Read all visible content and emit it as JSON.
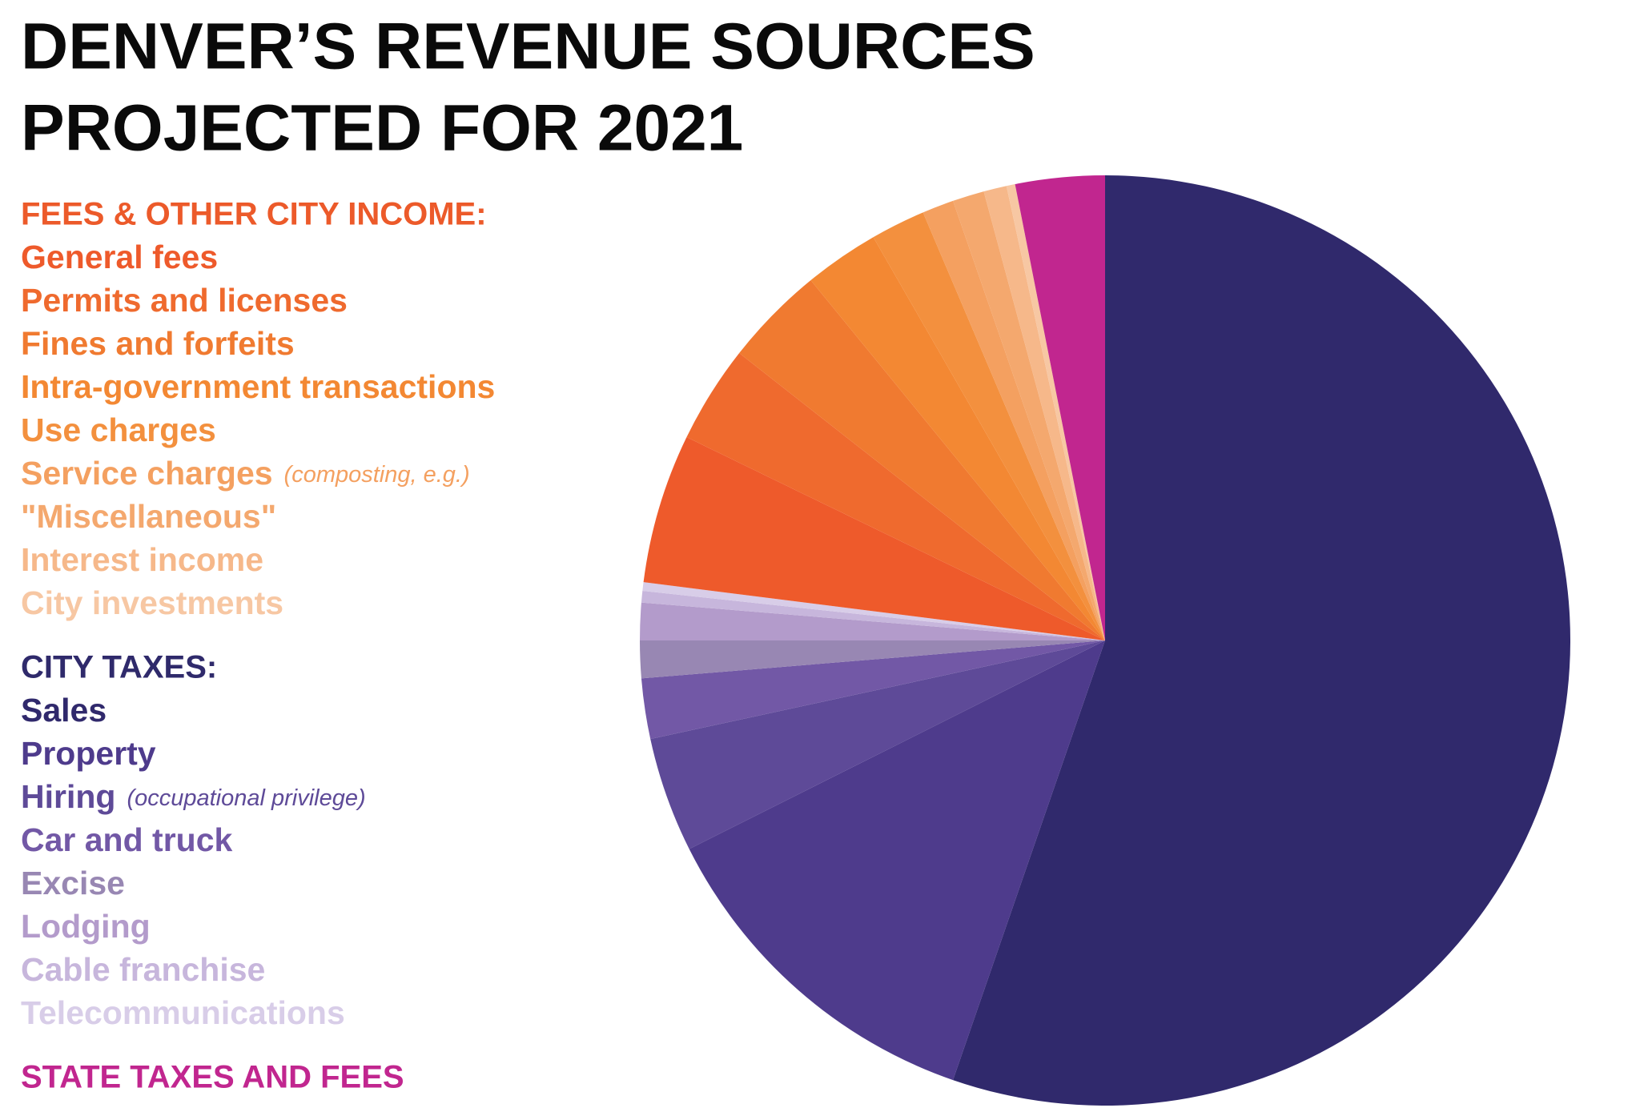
{
  "chart_data": {
    "type": "pie",
    "title": [
      "DENVER’S REVENUE SOURCES",
      "PROJECTED FOR 2021"
    ],
    "groups": [
      {
        "title": "FEES & OTHER CITY INCOME:",
        "color": "#ec5a2a",
        "items": [
          {
            "name": "General fees",
            "value": 5.2,
            "color": "#ee5a2b"
          },
          {
            "name": "Permits and licenses",
            "value": 3.4,
            "color": "#ef6a2e"
          },
          {
            "name": "Fines and forfeits",
            "value": 3.5,
            "color": "#f07a30"
          },
          {
            "name": "Intra-government transactions",
            "value": 2.6,
            "color": "#f38833"
          },
          {
            "name": "Use charges",
            "value": 1.9,
            "color": "#f3903e"
          },
          {
            "name": "Service charges",
            "note": "(composting, e.g.)",
            "value": 1.1,
            "color": "#f4a060"
          },
          {
            "name": "\"Miscellaneous\"",
            "value": 1.1,
            "color": "#f4a86e"
          },
          {
            "name": "Interest income",
            "value": 0.8,
            "color": "#f6b88a"
          },
          {
            "name": "City investments",
            "value": 0.3,
            "color": "#f7c7a3"
          }
        ]
      },
      {
        "title": "CITY TAXES:",
        "color": "#2f2a6b",
        "items": [
          {
            "name": "Sales",
            "value": 55.3,
            "color": "#30296c"
          },
          {
            "name": "Property",
            "value": 12.3,
            "color": "#4e3b8c"
          },
          {
            "name": "Hiring",
            "note": "(occupational privilege)",
            "value": 4.0,
            "color": "#5e4a98"
          },
          {
            "name": "Car and truck",
            "value": 2.1,
            "color": "#7258a6"
          },
          {
            "name": "Excise",
            "value": 1.3,
            "color": "#9887b3"
          },
          {
            "name": "Lodging",
            "value": 1.3,
            "color": "#b39bcb"
          },
          {
            "name": "Cable franchise",
            "value": 0.4,
            "color": "#c7b6dc"
          },
          {
            "name": "Telecommunications",
            "value": 0.3,
            "color": "#d8cde8"
          }
        ]
      },
      {
        "title": "STATE TAXES AND FEES",
        "color": "#c1268f",
        "value": 3.1
      }
    ]
  }
}
